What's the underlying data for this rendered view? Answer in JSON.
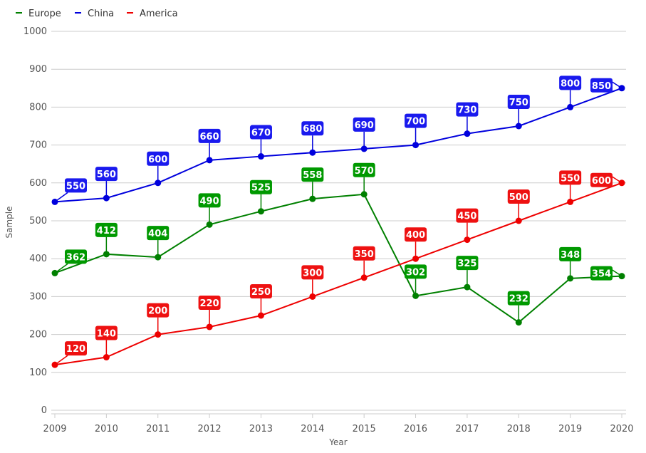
{
  "chart_data": {
    "type": "line",
    "xlabel": "Year",
    "ylabel": "Sample",
    "ylim": [
      0,
      1000
    ],
    "y_ticks": [
      "0",
      "100",
      "200",
      "300",
      "400",
      "500",
      "600",
      "700",
      "800",
      "900",
      "1000"
    ],
    "x": [
      "2009",
      "2010",
      "2011",
      "2012",
      "2013",
      "2014",
      "2015",
      "2016",
      "2017",
      "2018",
      "2019",
      "2020"
    ],
    "grid": true,
    "legend": "top-left",
    "data_labels": true,
    "series": [
      {
        "name": "Europe",
        "color": "#008000",
        "label_color": "#009900",
        "values": [
          362,
          412,
          404,
          490,
          525,
          558,
          570,
          302,
          325,
          232,
          348,
          354
        ]
      },
      {
        "name": "China",
        "color": "#0000dd",
        "label_color": "#1a1aee",
        "values": [
          550,
          560,
          600,
          660,
          670,
          680,
          690,
          700,
          730,
          750,
          800,
          850
        ]
      },
      {
        "name": "America",
        "color": "#ee0000",
        "label_color": "#ee1111",
        "values": [
          120,
          140,
          200,
          220,
          250,
          300,
          350,
          400,
          450,
          500,
          550,
          600
        ]
      }
    ]
  }
}
